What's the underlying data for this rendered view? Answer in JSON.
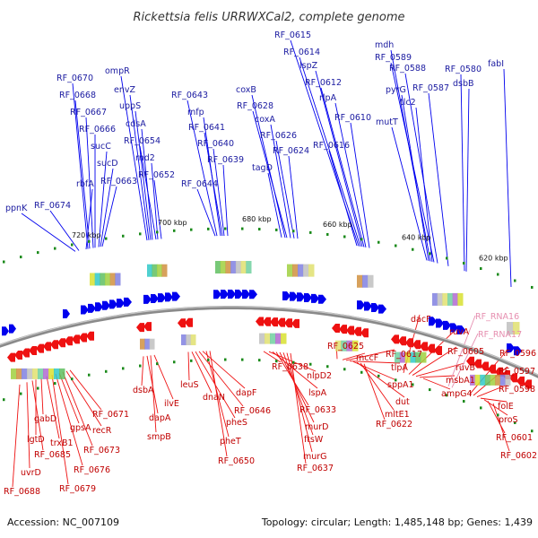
{
  "title": "Rickettsia felis URRWXCal2, complete genome",
  "footer": {
    "accession": "Accession: NC_007109",
    "summary": "Topology: circular; Length: 1,485,148 bp; Genes: 1,439"
  },
  "colors": {
    "forward": "#1a1aa0",
    "forward_gene": "#0000ee",
    "reverse": "#c00000",
    "reverse_gene": "#ee1111",
    "rna": "#e68fb0",
    "backbone": "#8a8a8a",
    "tick": "#1a8a1a"
  },
  "kbp_labels": [
    "620 kbp",
    "640 kbp",
    "660 kbp",
    "680 kbp",
    "700 kbp",
    "720 kbp"
  ],
  "forward_labels": [
    "RF_0615",
    "RF_0614",
    "lspZ",
    "RF_0612",
    "rlpA",
    "RF_0610",
    "RF_0616",
    "mdh",
    "RF_0589",
    "RF_0588",
    "RF_0587",
    "pyrG",
    "tlc2",
    "mutT",
    "RF_0580",
    "dsbB",
    "fabI",
    "ompR",
    "envZ",
    "uppS",
    "cdsA",
    "RF_0654",
    "rnd2",
    "RF_0652",
    "RF_0670",
    "RF_0668",
    "RF_0667",
    "RF_0666",
    "sucC",
    "sucD",
    "rbfA",
    "RF_0663",
    "ppnK",
    "RF_0674",
    "RF_0643",
    "mfp",
    "RF_0641",
    "RF_0640",
    "RF_0639",
    "RF_0644",
    "coxB",
    "RF_0628",
    "coxA",
    "RF_0626",
    "RF_0624",
    "tagD"
  ],
  "reverse_labels": [
    "RF_0671",
    "recR",
    "RF_0673",
    "gpsA",
    "RF_0676",
    "RF_0679",
    "gabD",
    "lgtD",
    "trxB1",
    "RF_0685",
    "uvrD",
    "RF_0688",
    "dsbA",
    "dapA",
    "smpB",
    "ilvE",
    "leuS",
    "dnaN",
    "pheS",
    "RF_0646",
    "dapF",
    "pheT",
    "RF_0650",
    "RF_0638",
    "nlpD2",
    "lspA",
    "RF_0633",
    "murD",
    "ftsW",
    "murG",
    "RF_0637",
    "RF_0625",
    "mccF",
    "RF_0617",
    "tlpA",
    "sppA1",
    "dut",
    "mltE1",
    "RF_0622",
    "dacF",
    "ruvA",
    "RF_0605",
    "ruvB",
    "msbA1",
    "ampG4",
    "RF_0596",
    "RF_0597",
    "RF_0598",
    "folE",
    "proS",
    "RF_0601",
    "RF_0602"
  ],
  "rna_labels": [
    "RF_RNA16",
    "RF_RNA17"
  ]
}
